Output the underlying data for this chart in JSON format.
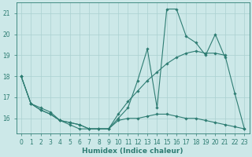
{
  "x": [
    0,
    1,
    2,
    3,
    4,
    5,
    6,
    7,
    8,
    9,
    10,
    11,
    12,
    13,
    14,
    15,
    16,
    17,
    18,
    19,
    20,
    21,
    22,
    23
  ],
  "line_jagged": [
    18.0,
    16.7,
    16.5,
    16.3,
    15.9,
    15.7,
    15.5,
    15.5,
    15.5,
    15.5,
    16.0,
    16.5,
    17.8,
    19.3,
    16.5,
    21.2,
    21.2,
    19.9,
    19.6,
    19.0,
    20.0,
    18.9,
    null,
    null
  ],
  "line_flat": [
    18.0,
    16.7,
    16.4,
    16.2,
    15.9,
    15.8,
    15.7,
    15.5,
    15.5,
    15.5,
    15.9,
    16.0,
    16.0,
    16.1,
    16.2,
    16.2,
    16.1,
    16.0,
    16.0,
    15.9,
    15.8,
    15.7,
    15.6,
    15.5
  ],
  "line_diag": [
    18.0,
    16.7,
    16.4,
    16.2,
    15.9,
    15.8,
    15.7,
    15.5,
    15.5,
    15.5,
    16.2,
    16.8,
    17.3,
    17.8,
    18.2,
    18.6,
    18.9,
    19.1,
    19.2,
    19.1,
    19.1,
    19.0,
    17.2,
    15.5
  ],
  "color": "#2e7d73",
  "bg_color": "#cce8e8",
  "grid_color": "#aad0d0",
  "xlabel": "Humidex (Indice chaleur)",
  "ylim": [
    15.3,
    21.5
  ],
  "xlim": [
    -0.5,
    23.5
  ],
  "yticks": [
    16,
    17,
    18,
    19,
    20,
    21
  ],
  "xticks": [
    0,
    1,
    2,
    3,
    4,
    5,
    6,
    7,
    8,
    9,
    10,
    11,
    12,
    13,
    14,
    15,
    16,
    17,
    18,
    19,
    20,
    21,
    22,
    23
  ],
  "xlabel_fontsize": 6.5,
  "tick_fontsize": 5.5
}
